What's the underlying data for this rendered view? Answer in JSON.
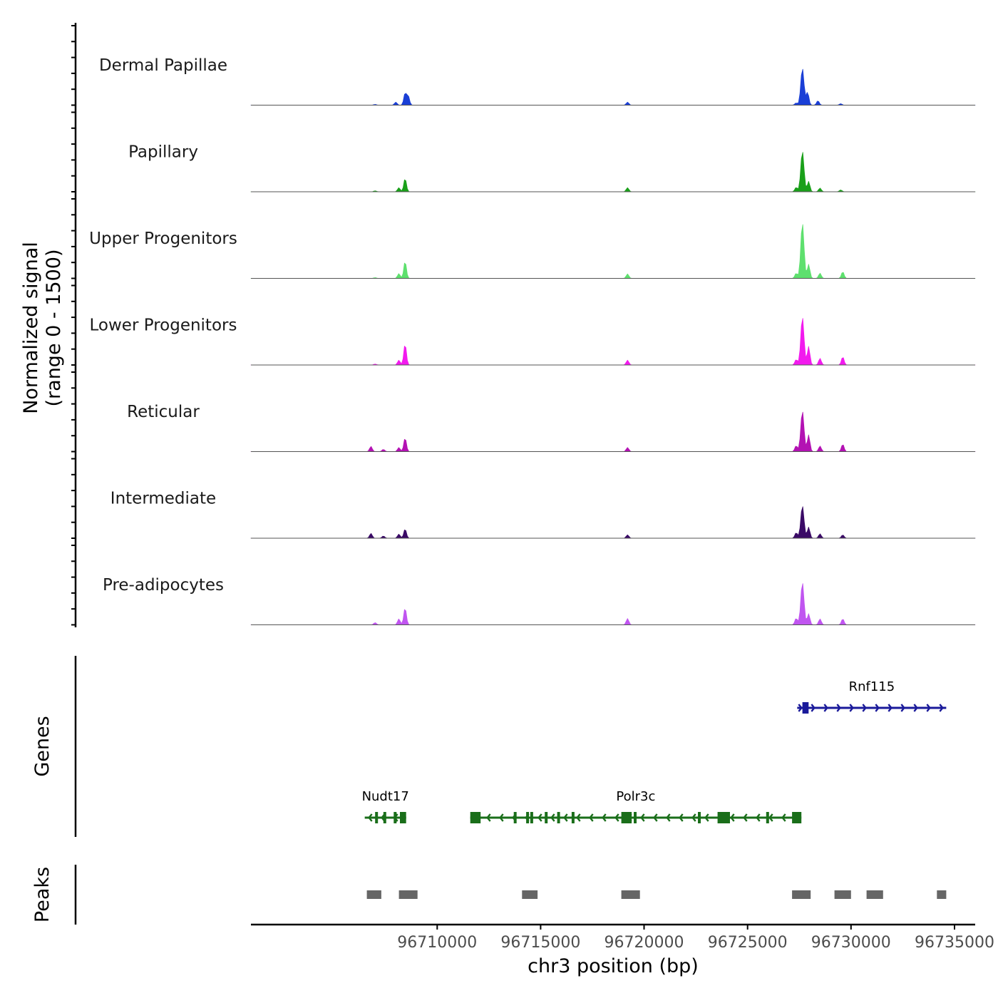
{
  "chart_data": {
    "type": "area",
    "chromosome": "chr3",
    "xlim": [
      96701000,
      96736000
    ],
    "x_ticks": [
      96710000,
      96715000,
      96720000,
      96725000,
      96730000,
      96735000
    ],
    "x_tick_labels": [
      "96710000",
      "96715000",
      "96720000",
      "96725000",
      "96730000",
      "96735000"
    ],
    "xlabel": "chr3 position (bp)",
    "ylabel_line1": "Normalized signal",
    "ylabel_line2": "(range 0 - 1500)",
    "ylim": [
      0,
      1500
    ],
    "tracks": [
      {
        "name": "Dermal Papillae",
        "color": "#1a3fd6",
        "peaks": [
          [
            96707000,
            20
          ],
          [
            96708000,
            80
          ],
          [
            96708450,
            320
          ],
          [
            96708600,
            250
          ],
          [
            96719200,
            80
          ],
          [
            96727350,
            60
          ],
          [
            96727650,
            1000
          ],
          [
            96727900,
            350
          ],
          [
            96728400,
            120
          ],
          [
            96729500,
            40
          ]
        ]
      },
      {
        "name": "Papillary",
        "color": "#1aa01a",
        "peaks": [
          [
            96707000,
            25
          ],
          [
            96708150,
            110
          ],
          [
            96708450,
            360
          ],
          [
            96719200,
            110
          ],
          [
            96727350,
            120
          ],
          [
            96727650,
            1100
          ],
          [
            96727950,
            280
          ],
          [
            96728500,
            100
          ],
          [
            96729500,
            50
          ]
        ]
      },
      {
        "name": "Upper Progenitors",
        "color": "#5ee06e",
        "peaks": [
          [
            96707000,
            20
          ],
          [
            96708150,
            130
          ],
          [
            96708450,
            460
          ],
          [
            96719200,
            120
          ],
          [
            96727350,
            140
          ],
          [
            96727650,
            1500
          ],
          [
            96727950,
            380
          ],
          [
            96728500,
            140
          ],
          [
            96729600,
            180
          ]
        ]
      },
      {
        "name": "Lower Progenitors",
        "color": "#f21aee",
        "peaks": [
          [
            96707000,
            25
          ],
          [
            96708150,
            130
          ],
          [
            96708450,
            570
          ],
          [
            96719200,
            130
          ],
          [
            96727350,
            150
          ],
          [
            96727650,
            1300
          ],
          [
            96727950,
            500
          ],
          [
            96728500,
            180
          ],
          [
            96729600,
            220
          ]
        ]
      },
      {
        "name": "Reticular",
        "color": "#b312b3",
        "peaks": [
          [
            96706800,
            140
          ],
          [
            96707400,
            60
          ],
          [
            96708150,
            110
          ],
          [
            96708450,
            370
          ],
          [
            96719200,
            110
          ],
          [
            96727350,
            160
          ],
          [
            96727650,
            1100
          ],
          [
            96727950,
            450
          ],
          [
            96728500,
            150
          ],
          [
            96729600,
            200
          ]
        ]
      },
      {
        "name": "Intermediate",
        "color": "#3a0a66",
        "peaks": [
          [
            96706800,
            130
          ],
          [
            96707400,
            60
          ],
          [
            96708150,
            110
          ],
          [
            96708450,
            250
          ],
          [
            96719200,
            90
          ],
          [
            96727350,
            150
          ],
          [
            96727650,
            880
          ],
          [
            96727950,
            300
          ],
          [
            96728500,
            120
          ],
          [
            96729600,
            90
          ]
        ]
      },
      {
        "name": "Pre-adipocytes",
        "color": "#c055f0",
        "peaks": [
          [
            96707000,
            60
          ],
          [
            96708150,
            160
          ],
          [
            96708450,
            460
          ],
          [
            96719200,
            170
          ],
          [
            96727350,
            180
          ],
          [
            96727650,
            1150
          ],
          [
            96727950,
            300
          ],
          [
            96728500,
            160
          ],
          [
            96729600,
            160
          ]
        ]
      }
    ],
    "genes_label": "Genes",
    "genes": [
      {
        "name": "Rnf115",
        "strand": "+",
        "color": "#1a1a9a",
        "start": 96727400,
        "end": 96734600,
        "exons": [
          [
            96727650,
            96727950
          ]
        ]
      },
      {
        "name": "Nudt17",
        "strand": "-",
        "color": "#1a6e1a",
        "start": 96706500,
        "end": 96708500,
        "exons": [
          [
            96707000,
            96707100
          ],
          [
            96707400,
            96707500
          ],
          [
            96707900,
            96708000
          ],
          [
            96708200,
            96708500
          ]
        ]
      },
      {
        "name": "Polr3c",
        "strand": "-",
        "color": "#1a6e1a",
        "start": 96711600,
        "end": 96727600,
        "exons": [
          [
            96711600,
            96712100
          ],
          [
            96713700,
            96713800
          ],
          [
            96714300,
            96714400
          ],
          [
            96714500,
            96714600
          ],
          [
            96715200,
            96715300
          ],
          [
            96715800,
            96715850
          ],
          [
            96716500,
            96716600
          ],
          [
            96718900,
            96719400
          ],
          [
            96719500,
            96719600
          ],
          [
            96722600,
            96722650
          ],
          [
            96723550,
            96724150
          ],
          [
            96725900,
            96725970
          ],
          [
            96727150,
            96727600
          ]
        ]
      }
    ],
    "peaks_label": "Peaks",
    "peak_regions": [
      [
        96706600,
        96707300
      ],
      [
        96708150,
        96709050
      ],
      [
        96714100,
        96714850
      ],
      [
        96718900,
        96719800
      ],
      [
        96727150,
        96728050
      ],
      [
        96729200,
        96730000
      ],
      [
        96730750,
        96731550
      ],
      [
        96734150,
        96734600
      ]
    ]
  }
}
